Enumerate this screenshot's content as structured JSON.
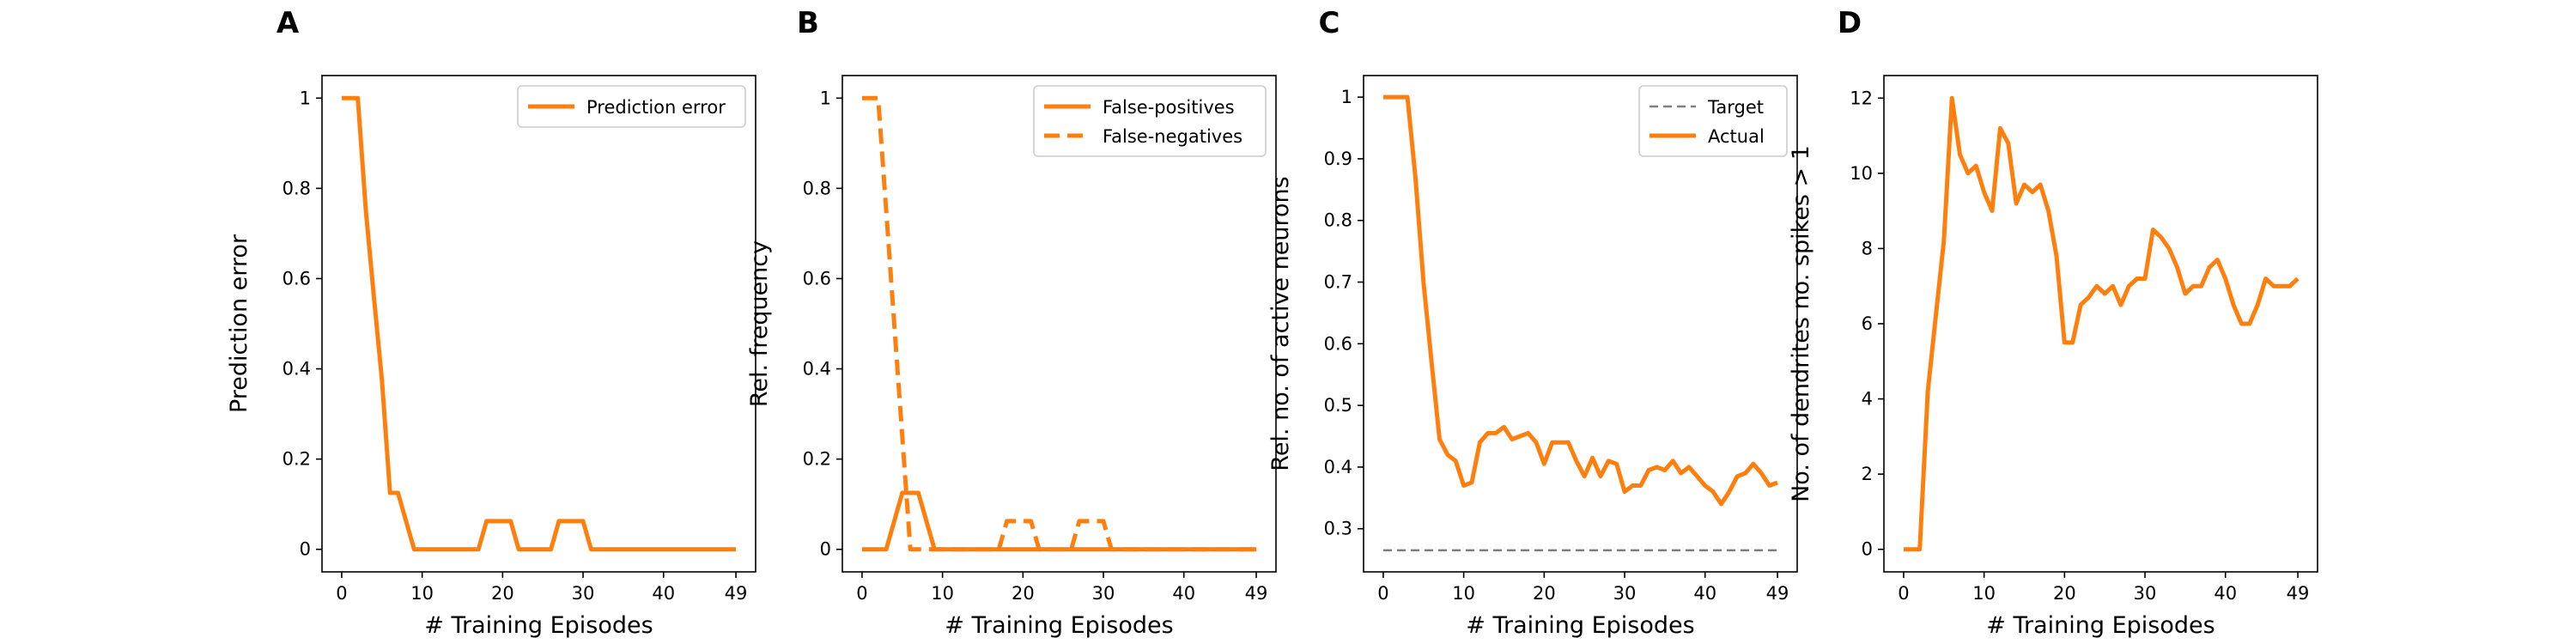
{
  "chart_data": [
    {
      "type": "line",
      "panel_label": "A",
      "xlabel": "# Training Episodes",
      "ylabel": "Prediction error",
      "xlim": [
        -2.45,
        51.45
      ],
      "xticks": [
        0,
        10,
        20,
        30,
        40,
        49
      ],
      "ylim": [
        -0.05,
        1.05
      ],
      "yticks": [
        0.0,
        0.2,
        0.4,
        0.6,
        0.8,
        1.0
      ],
      "legend": "upper right",
      "series": [
        {
          "name": "Prediction error",
          "color": "#ff7f0e",
          "linestyle": "solid",
          "values": [
            1,
            1,
            1,
            0.75,
            0.56,
            0.375,
            0.125,
            0.125,
            0.0625,
            0,
            0,
            0,
            0,
            0,
            0,
            0,
            0,
            0,
            0.0625,
            0.0625,
            0.0625,
            0.0625,
            0,
            0,
            0,
            0,
            0,
            0.0625,
            0.0625,
            0.0625,
            0.0625,
            0,
            0,
            0,
            0,
            0,
            0,
            0,
            0,
            0,
            0,
            0,
            0,
            0,
            0,
            0,
            0,
            0,
            0,
            0
          ]
        }
      ]
    },
    {
      "type": "line",
      "panel_label": "B",
      "xlabel": "# Training Episodes",
      "ylabel": "Rel. frequency",
      "xlim": [
        -2.45,
        51.45
      ],
      "xticks": [
        0,
        10,
        20,
        30,
        40,
        49
      ],
      "ylim": [
        -0.05,
        1.05
      ],
      "yticks": [
        0.0,
        0.2,
        0.4,
        0.6,
        0.8,
        1.0
      ],
      "legend": "upper right",
      "series": [
        {
          "name": "False-positives",
          "color": "#ff7f0e",
          "linestyle": "solid",
          "values": [
            0,
            0,
            0,
            0,
            0.0625,
            0.125,
            0.125,
            0.125,
            0.0625,
            0,
            0,
            0,
            0,
            0,
            0,
            0,
            0,
            0,
            0,
            0,
            0,
            0,
            0,
            0,
            0,
            0,
            0,
            0,
            0,
            0,
            0,
            0,
            0,
            0,
            0,
            0,
            0,
            0,
            0,
            0,
            0,
            0,
            0,
            0,
            0,
            0,
            0,
            0,
            0,
            0
          ]
        },
        {
          "name": "False-negatives",
          "color": "#ff7f0e",
          "linestyle": "dashed",
          "values": [
            1,
            1,
            1,
            0.75,
            0.5,
            0.25,
            0,
            0,
            0,
            0,
            0,
            0,
            0,
            0,
            0,
            0,
            0,
            0,
            0.0625,
            0.0625,
            0.0625,
            0.0625,
            0,
            0,
            0,
            0,
            0,
            0.0625,
            0.0625,
            0.0625,
            0.0625,
            0,
            0,
            0,
            0,
            0,
            0,
            0,
            0,
            0,
            0,
            0,
            0,
            0,
            0,
            0,
            0,
            0,
            0,
            0
          ]
        }
      ]
    },
    {
      "type": "line",
      "panel_label": "C",
      "xlabel": "# Training Episodes",
      "ylabel": "Rel. no. of active neurons",
      "xlim": [
        -2.45,
        51.45
      ],
      "xticks": [
        0,
        10,
        20,
        30,
        40,
        49
      ],
      "ylim": [
        0.23,
        1.035
      ],
      "yticks": [
        0.3,
        0.4,
        0.5,
        0.6,
        0.7,
        0.8,
        0.9,
        1.0
      ],
      "legend": "upper right",
      "series": [
        {
          "name": "Target",
          "color": "#7f7f7f",
          "linestyle": "thin-dashed",
          "values": [
            0.265,
            0.265,
            0.265,
            0.265,
            0.265,
            0.265,
            0.265,
            0.265,
            0.265,
            0.265,
            0.265,
            0.265,
            0.265,
            0.265,
            0.265,
            0.265,
            0.265,
            0.265,
            0.265,
            0.265,
            0.265,
            0.265,
            0.265,
            0.265,
            0.265,
            0.265,
            0.265,
            0.265,
            0.265,
            0.265,
            0.265,
            0.265,
            0.265,
            0.265,
            0.265,
            0.265,
            0.265,
            0.265,
            0.265,
            0.265,
            0.265,
            0.265,
            0.265,
            0.265,
            0.265,
            0.265,
            0.265,
            0.265,
            0.265,
            0.265
          ]
        },
        {
          "name": "Actual",
          "color": "#ff7f0e",
          "linestyle": "solid",
          "values": [
            1,
            1,
            1,
            1,
            0.87,
            0.7,
            0.57,
            0.445,
            0.42,
            0.41,
            0.37,
            0.375,
            0.44,
            0.455,
            0.455,
            0.465,
            0.445,
            0.45,
            0.455,
            0.44,
            0.405,
            0.44,
            0.44,
            0.44,
            0.41,
            0.385,
            0.415,
            0.385,
            0.41,
            0.405,
            0.36,
            0.37,
            0.37,
            0.395,
            0.4,
            0.395,
            0.41,
            0.39,
            0.4,
            0.385,
            0.37,
            0.36,
            0.34,
            0.36,
            0.385,
            0.39,
            0.405,
            0.39,
            0.37,
            0.375
          ]
        }
      ]
    },
    {
      "type": "line",
      "panel_label": "D",
      "xlabel": "# Training Episodes",
      "ylabel": "No. of dendrites no. spikes > 1",
      "xlim": [
        -2.45,
        51.45
      ],
      "xticks": [
        0,
        10,
        20,
        30,
        40,
        49
      ],
      "ylim": [
        -0.6,
        12.6
      ],
      "yticks": [
        0,
        2,
        4,
        6,
        8,
        10,
        12
      ],
      "series": [
        {
          "color": "#ff7f0e",
          "linestyle": "solid",
          "values": [
            0,
            0,
            0,
            4.2,
            6.2,
            8.2,
            12,
            10.5,
            10,
            10.2,
            9.5,
            9,
            11.2,
            10.8,
            9.2,
            9.7,
            9.5,
            9.7,
            9,
            7.8,
            5.5,
            5.5,
            6.5,
            6.7,
            7,
            6.8,
            7,
            6.5,
            7,
            7.2,
            7.2,
            8.5,
            8.3,
            8,
            7.5,
            6.8,
            7,
            7,
            7.5,
            7.7,
            7.2,
            6.5,
            6,
            6,
            6.5,
            7.2,
            7,
            7,
            7,
            7.2
          ]
        }
      ]
    }
  ]
}
